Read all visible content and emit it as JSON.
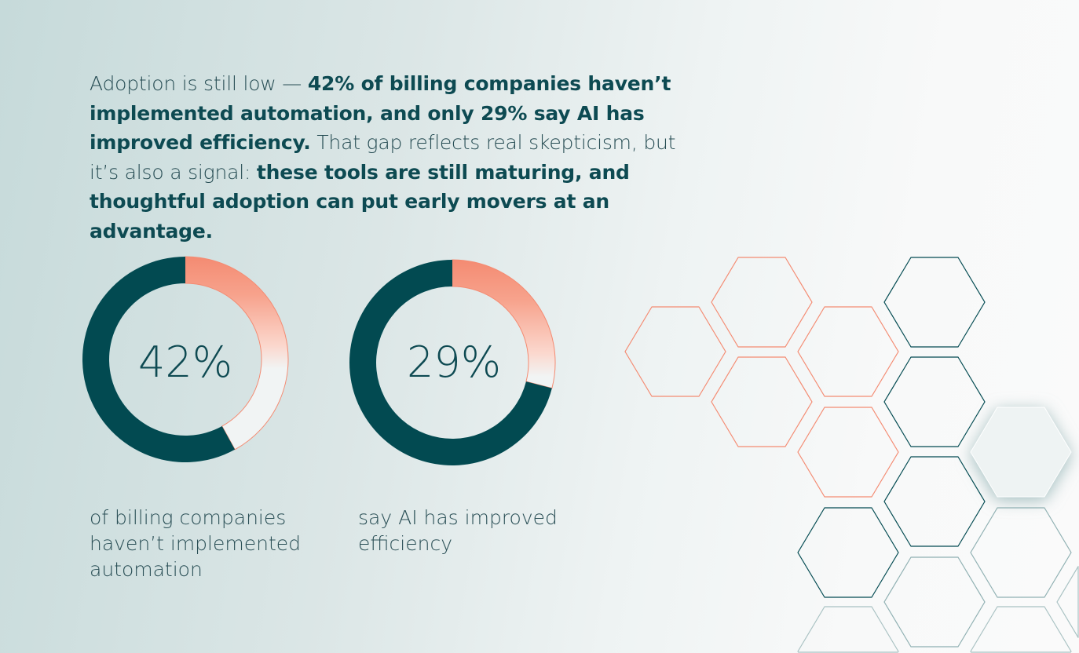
{
  "intro": {
    "segments": [
      {
        "text": "Adoption is still low — ",
        "bold": false
      },
      {
        "text": "42% of billing companies haven’t implemented automation, and only 29% say AI has improved efficiency.",
        "bold": true
      },
      {
        "text": " That gap reflects real skepticism, but it’s also a signal: ",
        "bold": false
      },
      {
        "text": "these tools are still maturing, and thoughtful adoption can put early movers at an advantage.",
        "bold": true
      }
    ]
  },
  "chart_data": [
    {
      "type": "pie",
      "variant": "donut",
      "value_percent": 42,
      "label": "42%",
      "caption": "of billing companies haven’t implemented automation",
      "highlight_color": "#f48b72",
      "base_color": "#024a51"
    },
    {
      "type": "pie",
      "variant": "donut",
      "value_percent": 29,
      "label": "29%",
      "caption": "say AI has improved efficiency",
      "highlight_color": "#f48b72",
      "base_color": "#024a51"
    }
  ],
  "colors": {
    "teal": "#024a51",
    "coral": "#f48b72"
  }
}
